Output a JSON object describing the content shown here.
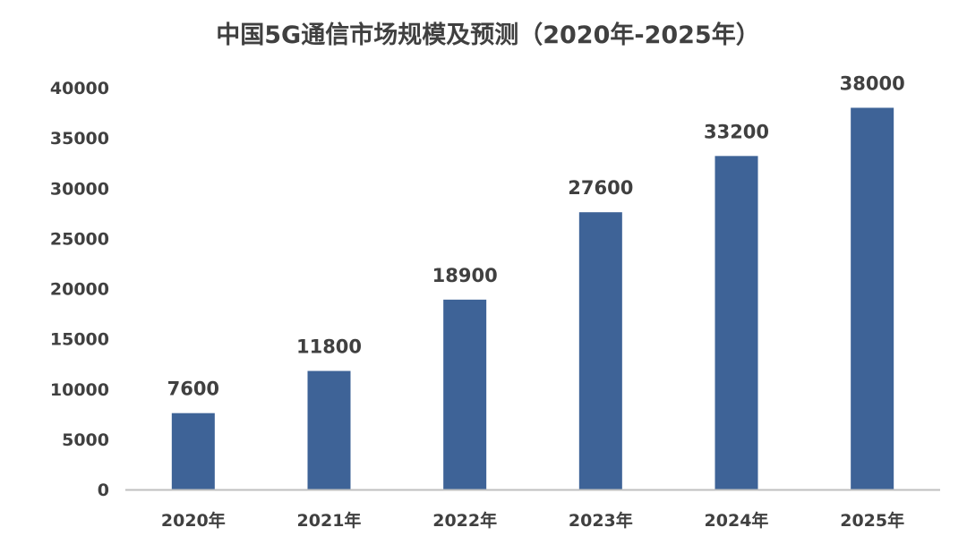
{
  "chart_data": {
    "type": "bar",
    "title": "中国5G通信市场规模及预测（2020年-2025年）",
    "xlabel": "",
    "ylabel": "",
    "categories": [
      "2020年",
      "2021年",
      "2022年",
      "2023年",
      "2024年",
      "2025年"
    ],
    "values": [
      7600,
      11800,
      18900,
      27600,
      33200,
      38000
    ],
    "data_labels": [
      "7600",
      "11800",
      "18900",
      "27600",
      "33200",
      "38000"
    ],
    "ylim": [
      0,
      40000
    ],
    "yticks": [
      0,
      5000,
      10000,
      15000,
      20000,
      25000,
      30000,
      35000,
      40000
    ],
    "ytick_labels": [
      "0",
      "5000",
      "10000",
      "15000",
      "20000",
      "25000",
      "30000",
      "35000",
      "40000"
    ],
    "grid": false,
    "legend": "none",
    "bar_color": "#3e6397",
    "axis_color": "#bfbfbf",
    "text_color": "#404040"
  }
}
